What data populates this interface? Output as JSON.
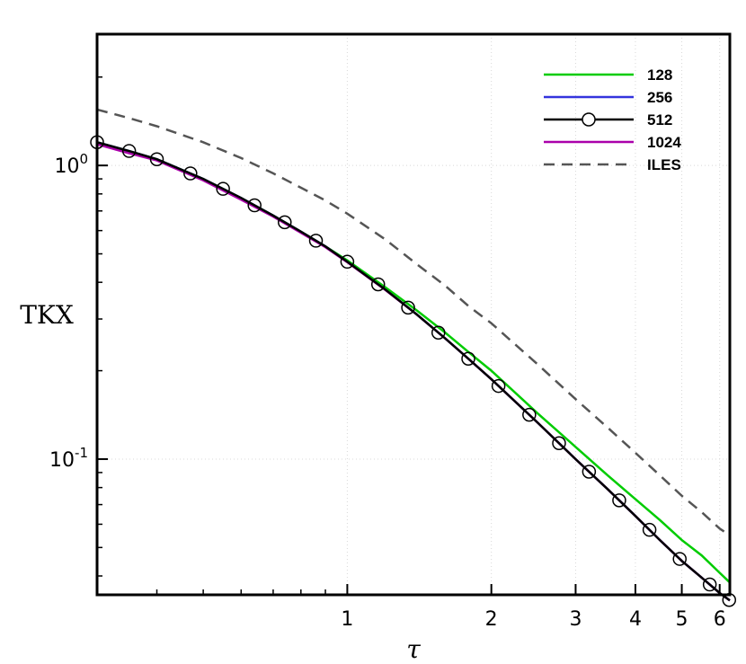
{
  "chart_data": {
    "type": "line",
    "xlabel": "τ",
    "ylabel": "TKX",
    "xscale": "log",
    "yscale": "log",
    "xlim": [
      0.3,
      6.3
    ],
    "ylim": [
      0.0345,
      2.8
    ],
    "grid": true,
    "legend_position": "top-right",
    "xticks": [
      {
        "value": 1,
        "label": "1"
      },
      {
        "value": 2,
        "label": "2"
      },
      {
        "value": 3,
        "label": "3"
      },
      {
        "value": 4,
        "label": "4"
      },
      {
        "value": 5,
        "label": "5"
      },
      {
        "value": 6,
        "label": "6"
      }
    ],
    "yticks": [
      {
        "value": 1,
        "label": "10",
        "exponent": "0"
      },
      {
        "value": 0.1,
        "label": "10",
        "exponent": "-1"
      }
    ],
    "series": [
      {
        "name": "128",
        "color": "#00cc00",
        "dash": "solid",
        "marker": "none",
        "x": [
          0.3,
          0.35,
          0.4,
          0.5,
          0.6,
          0.7,
          0.8,
          0.9,
          1.0,
          1.2,
          1.4,
          1.6,
          1.8,
          2.0,
          2.5,
          3.0,
          3.5,
          4.0,
          4.5,
          5.0,
          5.5,
          6.0,
          6.3
        ],
        "y": [
          1.2,
          1.12,
          1.05,
          0.9,
          0.775,
          0.675,
          0.595,
          0.53,
          0.475,
          0.385,
          0.32,
          0.27,
          0.23,
          0.2,
          0.143,
          0.11,
          0.088,
          0.073,
          0.062,
          0.053,
          0.047,
          0.041,
          0.038
        ]
      },
      {
        "name": "256",
        "color": "#3333dd",
        "dash": "solid",
        "marker": "none",
        "x": [
          0.3,
          0.35,
          0.4,
          0.5,
          0.6,
          0.7,
          0.8,
          0.9,
          1.0,
          1.2,
          1.4,
          1.6,
          1.8,
          2.0,
          2.5,
          3.0,
          3.5,
          4.0,
          4.5,
          5.0,
          5.5,
          6.0,
          6.3
        ],
        "y": [
          1.2,
          1.12,
          1.05,
          0.9,
          0.775,
          0.675,
          0.595,
          0.53,
          0.47,
          0.378,
          0.31,
          0.258,
          0.218,
          0.187,
          0.133,
          0.1,
          0.079,
          0.064,
          0.053,
          0.045,
          0.0395,
          0.035,
          0.033
        ]
      },
      {
        "name": "512",
        "color": "#000000",
        "dash": "solid",
        "marker": "circle",
        "x": [
          0.3,
          0.35,
          0.4,
          0.5,
          0.6,
          0.7,
          0.8,
          0.9,
          1.0,
          1.2,
          1.4,
          1.6,
          1.8,
          2.0,
          2.5,
          3.0,
          3.5,
          4.0,
          4.5,
          5.0,
          5.5,
          6.0,
          6.3
        ],
        "y": [
          1.2,
          1.12,
          1.05,
          0.9,
          0.775,
          0.675,
          0.595,
          0.53,
          0.47,
          0.378,
          0.31,
          0.258,
          0.218,
          0.187,
          0.133,
          0.1,
          0.079,
          0.064,
          0.053,
          0.045,
          0.0395,
          0.035,
          0.033
        ]
      },
      {
        "name": "1024",
        "color": "#aa00aa",
        "dash": "solid",
        "marker": "none",
        "x": [
          0.3,
          0.35,
          0.4,
          0.5,
          0.6,
          0.7,
          0.8,
          0.9,
          1.0,
          1.2,
          1.4,
          1.6,
          1.8,
          2.0,
          2.5,
          3.0,
          3.5,
          4.0,
          4.5,
          5.0,
          5.5,
          6.0,
          6.3
        ],
        "y": [
          1.18,
          1.1,
          1.04,
          0.89,
          0.765,
          0.67,
          0.59,
          0.527,
          0.468,
          0.377,
          0.31,
          0.258,
          0.218,
          0.187,
          0.133,
          0.1,
          0.079,
          0.064,
          0.053,
          0.045,
          0.0395,
          0.035,
          0.033
        ]
      },
      {
        "name": "ILES",
        "color": "#555555",
        "dash": "dashed",
        "marker": "none",
        "x": [
          0.3,
          0.35,
          0.4,
          0.5,
          0.6,
          0.7,
          0.8,
          0.9,
          1.0,
          1.2,
          1.4,
          1.6,
          1.8,
          2.0,
          2.5,
          3.0,
          3.5,
          4.0,
          4.5,
          5.0,
          5.5,
          6.0,
          6.3
        ],
        "y": [
          1.55,
          1.45,
          1.36,
          1.2,
          1.06,
          0.94,
          0.84,
          0.76,
          0.685,
          0.56,
          0.46,
          0.39,
          0.33,
          0.29,
          0.21,
          0.16,
          0.128,
          0.105,
          0.088,
          0.075,
          0.066,
          0.058,
          0.055
        ]
      }
    ],
    "marker_series_points": {
      "series": "512",
      "x": [
        0.3,
        0.35,
        0.4,
        0.47,
        0.55,
        0.64,
        0.74,
        0.86,
        1.0,
        1.16,
        1.34,
        1.55,
        1.79,
        2.07,
        2.4,
        2.77,
        3.2,
        3.7,
        4.28,
        4.95,
        5.72,
        6.28
      ]
    }
  }
}
